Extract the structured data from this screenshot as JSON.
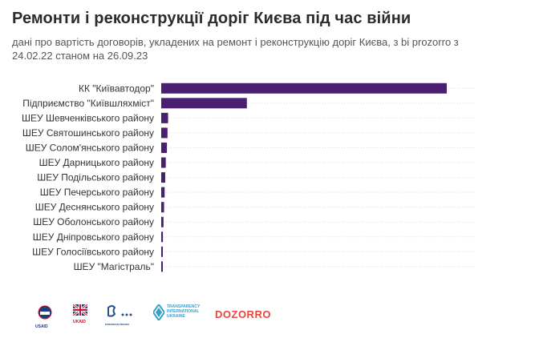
{
  "header": {
    "title": "Ремонти і реконструкції доріг Києва під час війни",
    "subtitle": "дані про вартість договорів, укладених на ремонт і реконструкцію доріг Києва, з bi prozorro з 24.02.22 станом на 26.09.23"
  },
  "chart_data": {
    "type": "bar",
    "orientation": "horizontal",
    "title": "Ремонти і реконструкції доріг Києва під час війни",
    "subtitle": "дані про вартість договорів, укладених на ремонт і реконструкцію доріг Києва, з bi prozorro з 24.02.22 станом на 26.09.23",
    "categories": [
      "КК \"Київавтодор\"",
      "Підприємство \"Київшляхміст\"",
      "ШЕУ Шевченківського району",
      "ШЕУ Святошинського району",
      "ШЕУ Солом'янського району",
      "ШЕУ Дарницького району",
      "ШЕУ Подільського району",
      "ШЕУ Печерського району",
      "ШЕУ Деснянського району",
      "ШЕУ Оболонського району",
      "ШЕУ Дніпровського району",
      "ШЕУ Голосіївського району",
      "ШЕУ \"Магістраль\""
    ],
    "values": [
      100,
      30,
      2.4,
      2.2,
      2.0,
      1.6,
      1.4,
      1.2,
      1.0,
      0.8,
      0.6,
      0.5,
      0.4
    ],
    "value_unit": "share of largest (%)",
    "color": "#4b1f6f",
    "grid": "horizontal dotted",
    "legend": "none"
  },
  "logos": {
    "usaid": "USAID",
    "ukaid": "UKAID",
    "ep": "EUROPEAN PRAVDA",
    "ti_line1": "TRANSPARENCY",
    "ti_line2": "INTERNATIONAL",
    "ti_line3": "UKRAINE",
    "dozorro": "DOZORRO"
  },
  "colors": {
    "bar": "#4b1f6f",
    "grid": "#d9d9d9",
    "usaid_blue": "#1a3f7a",
    "dozorro_red": "#e8453c"
  }
}
